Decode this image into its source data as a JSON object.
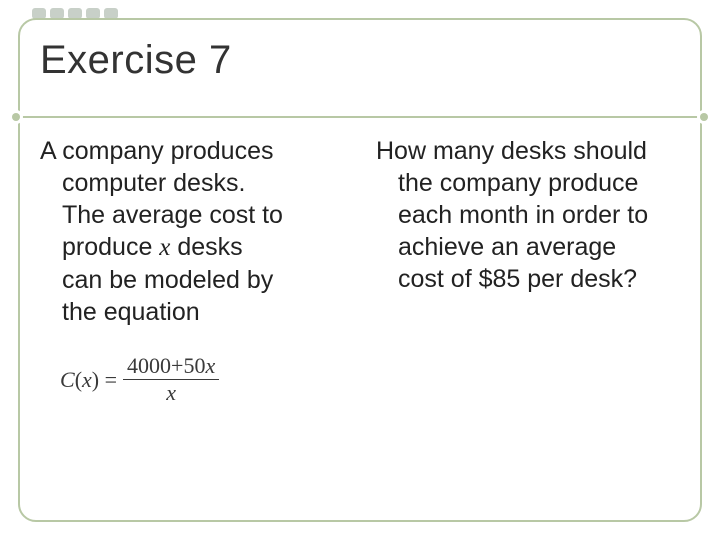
{
  "title": "Exercise 7",
  "left": {
    "line1": "A company produces",
    "line2": "computer desks.",
    "line3": "The average cost to",
    "line4_a": "produce ",
    "line4_var": "x",
    "line4_b": " desks",
    "line5": "can be modeled by",
    "line6": "the equation"
  },
  "equation": {
    "lhs_func": "C",
    "lhs_var": "x",
    "numerator_a": "4000",
    "numerator_op": "+",
    "numerator_b": "50",
    "numerator_var": "x",
    "den_var": "x"
  },
  "right": {
    "line1": "How many desks should",
    "line2": "the company produce",
    "line3": "each month in order to",
    "line4": "achieve an average",
    "line5": "cost of $85 per desk?"
  },
  "colors": {
    "border": "#b8c8a5",
    "text": "#222222",
    "dot": "#c8d0c8"
  }
}
